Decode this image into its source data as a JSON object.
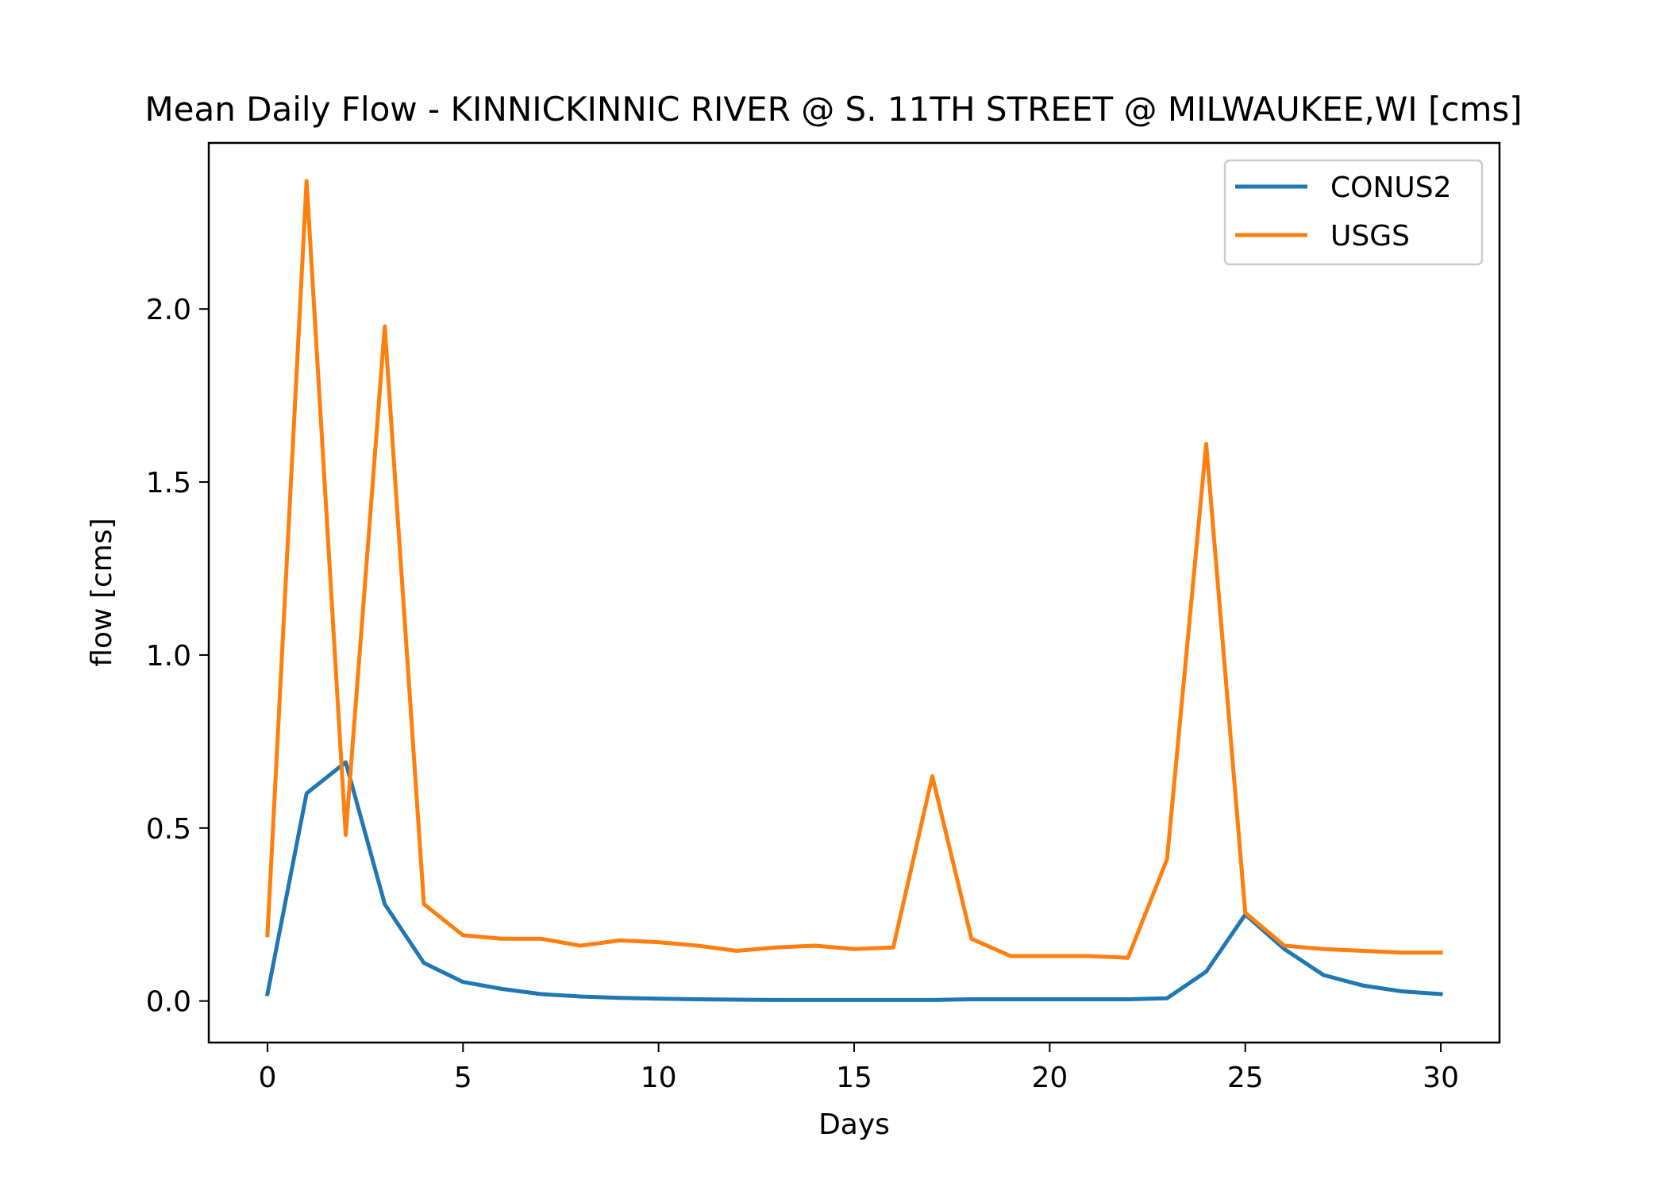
{
  "chart_data": {
    "type": "line",
    "title": "Mean Daily Flow - KINNICKINNIC RIVER @ S. 11TH STREET @ MILWAUKEE,WI [cms]",
    "xlabel": "Days",
    "ylabel": "flow [cms]",
    "xlim": [
      -1.5,
      31.5
    ],
    "ylim": [
      -0.12,
      2.48
    ],
    "xticks": [
      0,
      5,
      10,
      15,
      20,
      25,
      30
    ],
    "xtick_labels": [
      "0",
      "5",
      "10",
      "15",
      "20",
      "25",
      "30"
    ],
    "yticks": [
      0.0,
      0.5,
      1.0,
      1.5,
      2.0
    ],
    "ytick_labels": [
      "0.0",
      "0.5",
      "1.0",
      "1.5",
      "2.0"
    ],
    "grid": false,
    "legend_position": "upper-right",
    "x": [
      0,
      1,
      2,
      3,
      4,
      5,
      6,
      7,
      8,
      9,
      10,
      11,
      12,
      13,
      14,
      15,
      16,
      17,
      18,
      19,
      20,
      21,
      22,
      23,
      24,
      25,
      26,
      27,
      28,
      29,
      30
    ],
    "series": [
      {
        "name": "CONUS2",
        "color": "#1f77b4",
        "values": [
          0.02,
          0.6,
          0.69,
          0.28,
          0.11,
          0.055,
          0.035,
          0.02,
          0.013,
          0.009,
          0.007,
          0.005,
          0.004,
          0.003,
          0.003,
          0.003,
          0.003,
          0.003,
          0.005,
          0.005,
          0.005,
          0.005,
          0.005,
          0.008,
          0.085,
          0.25,
          0.15,
          0.075,
          0.045,
          0.028,
          0.02
        ]
      },
      {
        "name": "USGS",
        "color": "#ff7f0e",
        "values": [
          0.19,
          2.37,
          0.48,
          1.95,
          0.28,
          0.19,
          0.18,
          0.18,
          0.16,
          0.175,
          0.17,
          0.16,
          0.145,
          0.155,
          0.16,
          0.15,
          0.155,
          0.65,
          0.18,
          0.13,
          0.13,
          0.13,
          0.125,
          0.41,
          1.61,
          0.255,
          0.16,
          0.15,
          0.145,
          0.14,
          0.14
        ]
      }
    ]
  }
}
